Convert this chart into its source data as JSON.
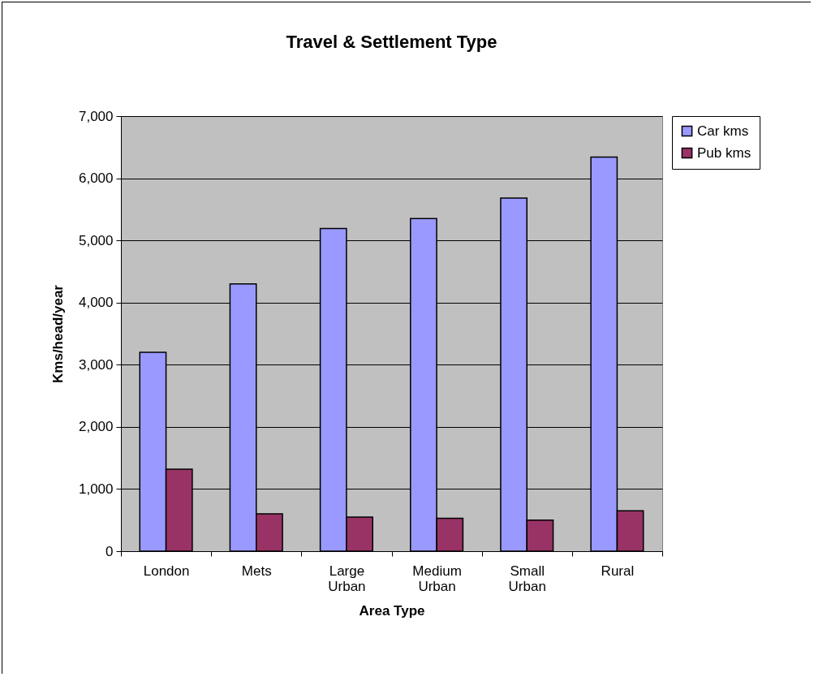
{
  "chart_data": {
    "type": "bar",
    "title": "Travel & Settlement Type",
    "xlabel": "Area Type",
    "ylabel": "Kms/head/year",
    "categories": [
      "London",
      "Mets",
      "Large Urban",
      "Medium Urban",
      "Small Urban",
      "Rural"
    ],
    "series": [
      {
        "name": "Car kms",
        "color": "#9999ff",
        "values": [
          3200,
          4300,
          5190,
          5350,
          5680,
          6340
        ]
      },
      {
        "name": "Pub kms",
        "color": "#993366",
        "values": [
          1320,
          600,
          550,
          530,
          500,
          650
        ]
      }
    ],
    "ylim": [
      0,
      7000
    ],
    "yticks": [
      0,
      {
        "value": 1000,
        "label": "1,000"
      },
      {
        "value": 2000,
        "label": "2,000"
      },
      {
        "value": 3000,
        "label": "3,000"
      },
      {
        "value": 4000,
        "label": "4,000"
      },
      {
        "value": 5000,
        "label": "5,000"
      },
      {
        "value": 6000,
        "label": "6,000"
      },
      {
        "value": 7000,
        "label": "7,000"
      }
    ],
    "grid": "y",
    "legend": "right"
  }
}
